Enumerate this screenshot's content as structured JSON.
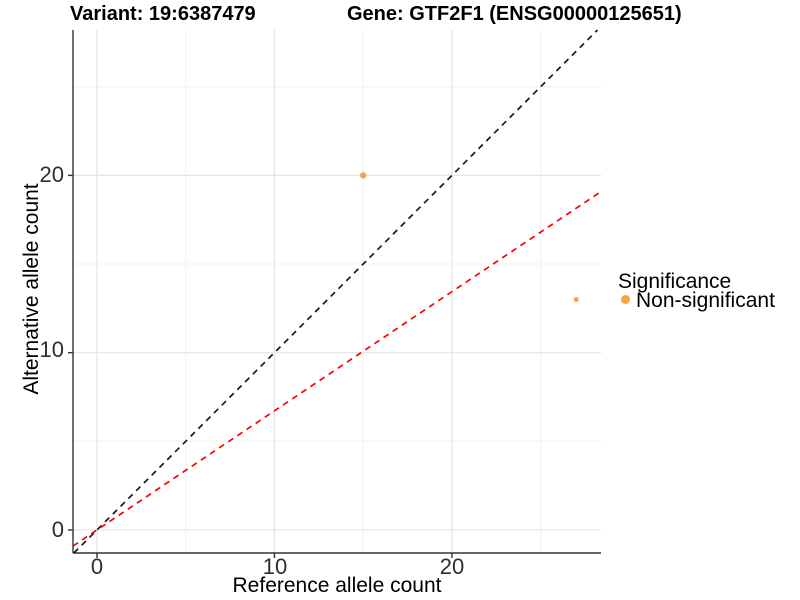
{
  "chart_data": {
    "type": "scatter",
    "title_left": "Variant: 19:6387479",
    "title_right": "Gene: GTF2F1 (ENSG00000125651)",
    "xlabel": "Reference allele count",
    "ylabel": "Alternative allele count",
    "xlim": [
      -1.35,
      28.4
    ],
    "ylim": [
      -1.3,
      28.2
    ],
    "x_major_ticks": [
      0,
      10,
      20
    ],
    "y_major_ticks": [
      0,
      10,
      20
    ],
    "x_minor_ticks": [
      5,
      15,
      25
    ],
    "y_minor_ticks": [
      5,
      15,
      25
    ],
    "x_tick_labels": [
      "0",
      "10",
      "20"
    ],
    "y_tick_labels": [
      "0",
      "10",
      "20"
    ],
    "grid": true,
    "points": [
      {
        "x": 15,
        "y": 20,
        "radius_px": 3.2,
        "series": "Non-significant"
      },
      {
        "x": 27,
        "y": 13,
        "radius_px": 2.5,
        "series": "Non-significant"
      }
    ],
    "point_color": "#F9A242",
    "reference_lines": [
      {
        "name": "identity-line",
        "slope": 1,
        "intercept": 0,
        "color": "#1a1a1a",
        "style": "dashed"
      },
      {
        "name": "expected-ratio-line",
        "slope": 0.672,
        "intercept": 0,
        "color": "#FF0000",
        "style": "dashed"
      }
    ],
    "legend": {
      "title": "Significance",
      "position": "right",
      "items": [
        {
          "label": "Non-significant",
          "color": "#F9A242"
        }
      ]
    },
    "colors": {
      "grid_major": "#E4E4E4",
      "grid_minor": "#F0F0F0",
      "axis": "#333333",
      "background": "#FFFFFF"
    }
  }
}
